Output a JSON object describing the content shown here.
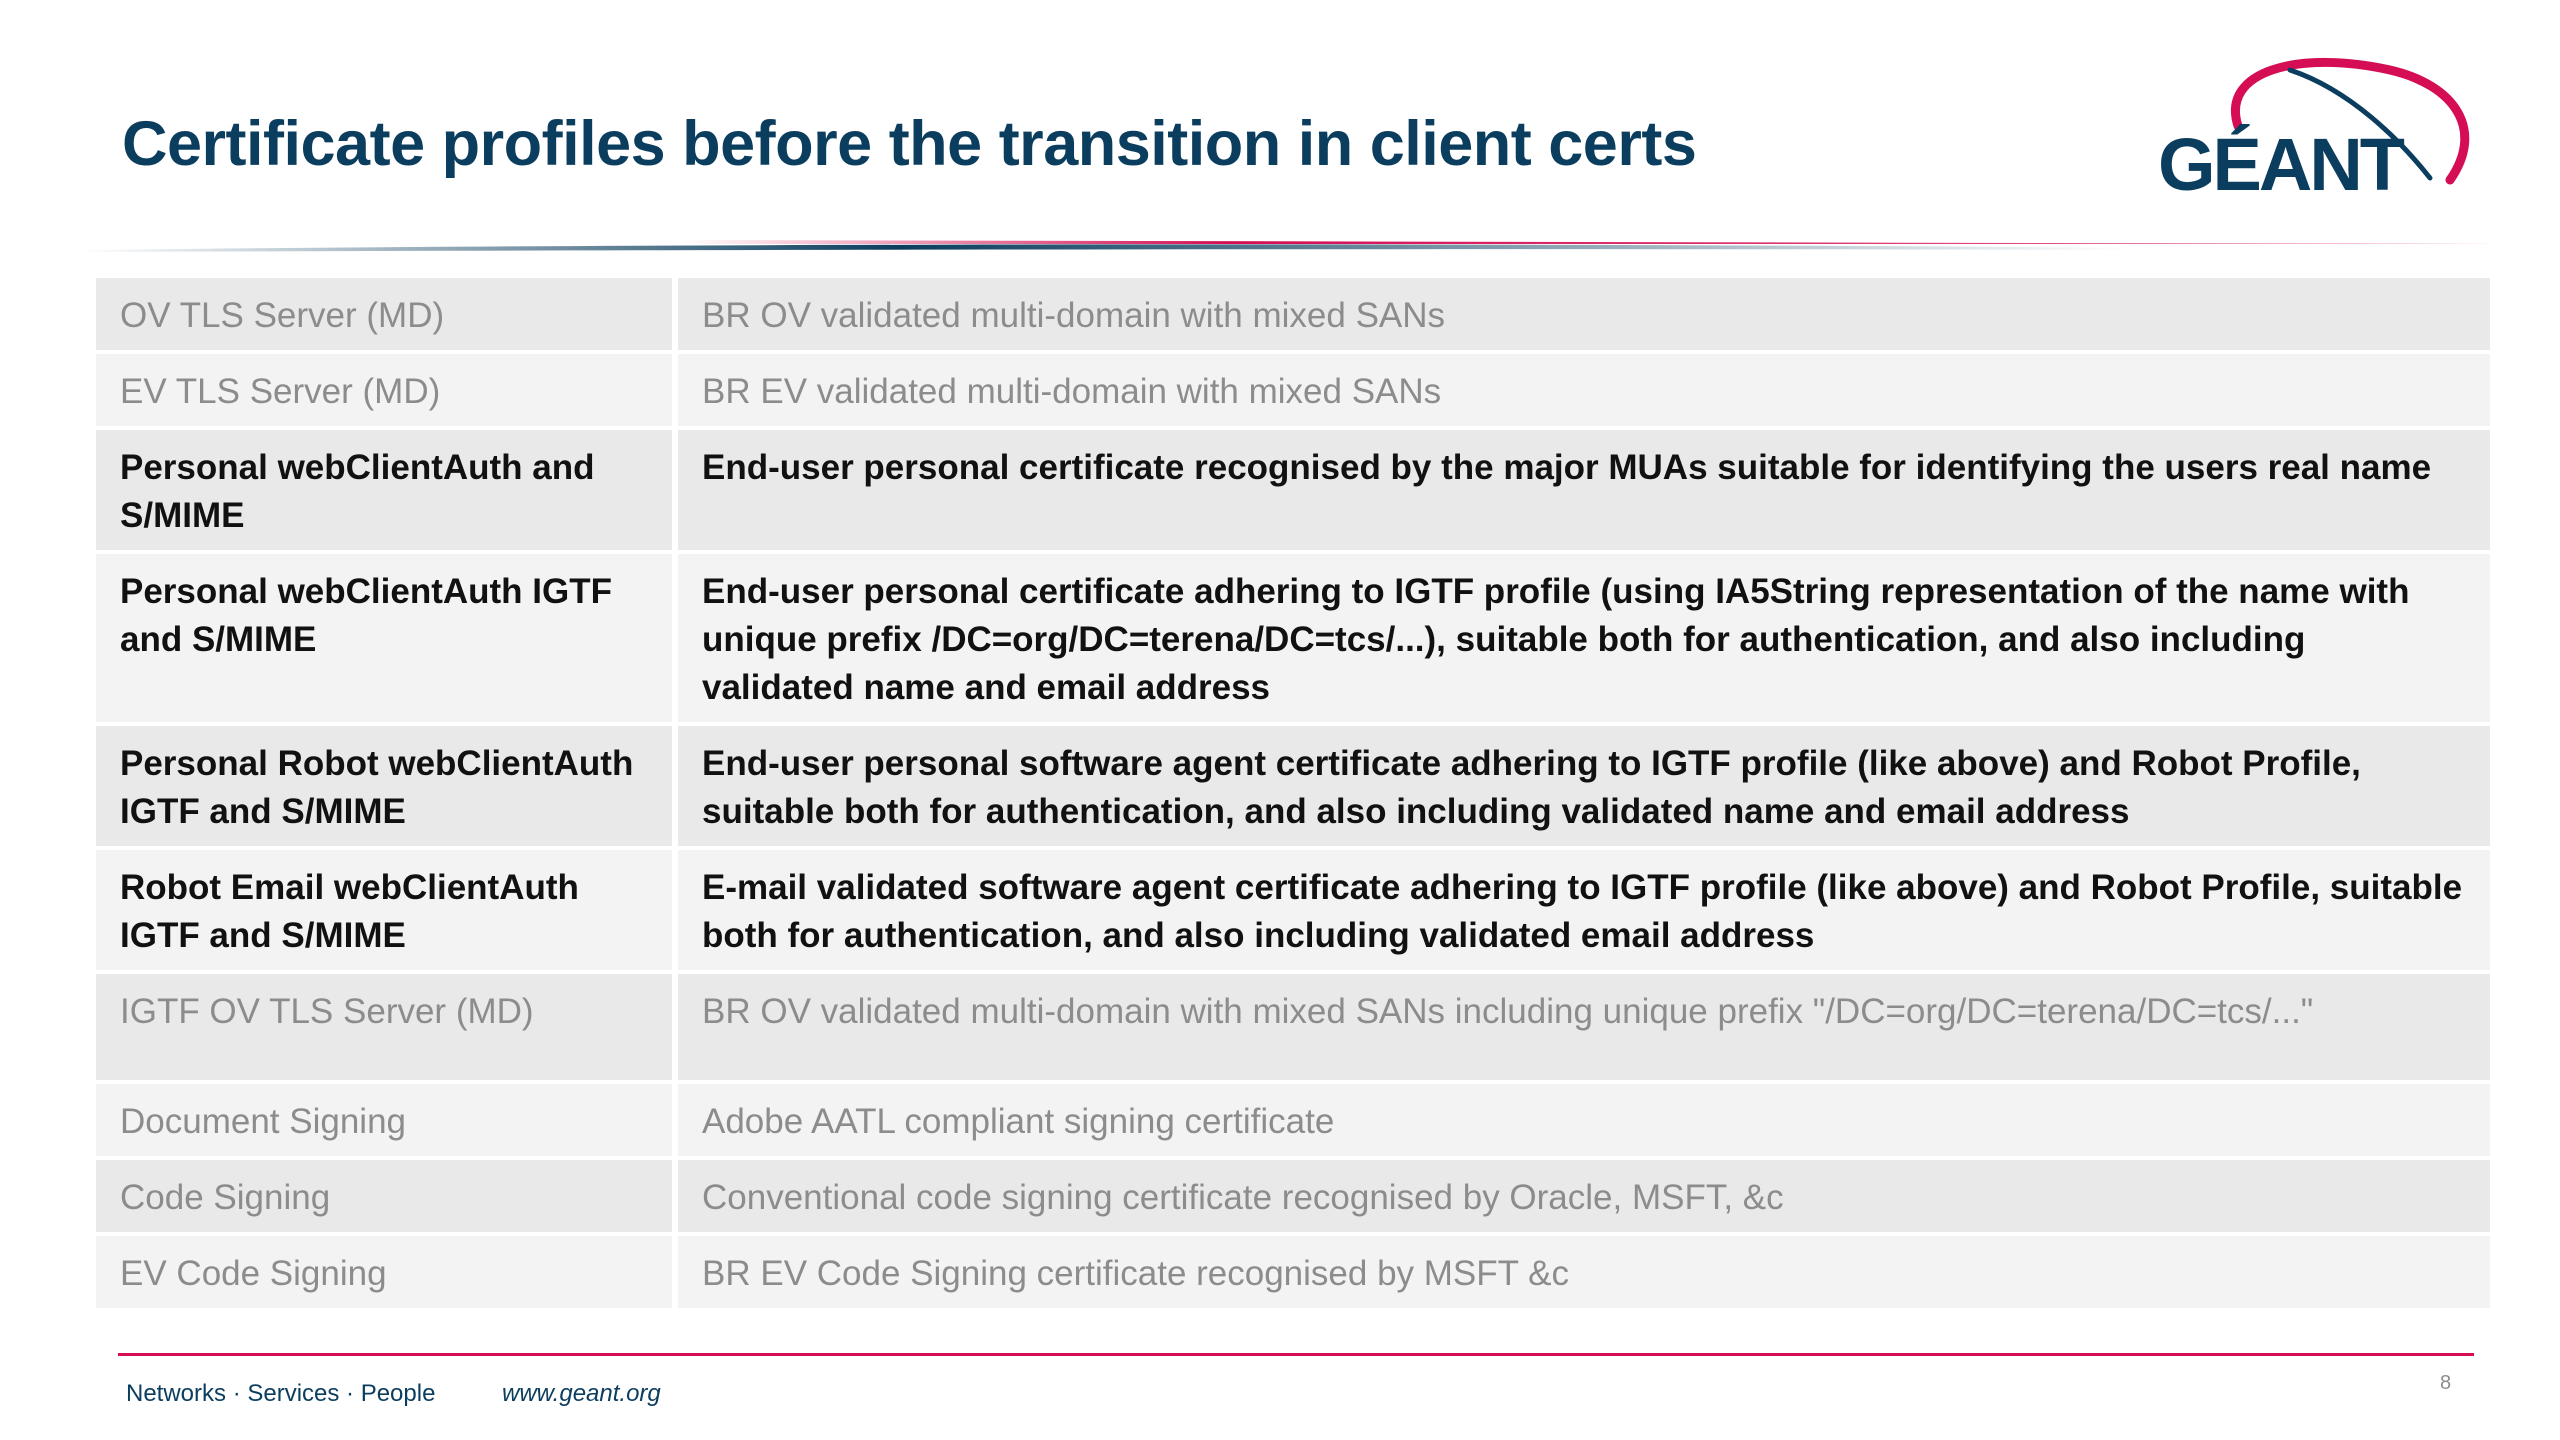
{
  "slide": {
    "title": "Certificate profiles before the transition in client certs",
    "page_number": "8"
  },
  "logo": {
    "text": "GÉANT",
    "colors": {
      "arc": "#d40d54",
      "text": "#0b3d5e"
    }
  },
  "table": {
    "rows": [
      {
        "name": "OV TLS Server (MD)",
        "description": "BR OV validated multi-domain with mixed SANs",
        "emphasis": false
      },
      {
        "name": "EV TLS Server (MD)",
        "description": "BR EV validated multi-domain with mixed SANs",
        "emphasis": false
      },
      {
        "name": "Personal webClientAuth and S/MIME",
        "description": "End-user personal certificate recognised by the major MUAs suitable for identifying the users real name",
        "emphasis": true
      },
      {
        "name": "Personal webClientAuth IGTF and S/MIME",
        "description": "End-user personal certificate adhering to IGTF profile (using IA5String representation of the name with unique prefix /DC=org/DC=terena/DC=tcs/...), suitable both for authentication, and also including validated name and email address",
        "emphasis": true
      },
      {
        "name": "Personal Robot webClientAuth IGTF and S/MIME",
        "description": "End-user personal software agent certificate adhering to IGTF profile (like above) and Robot Profile, suitable both for authentication, and also including validated name and email address",
        "emphasis": true
      },
      {
        "name": "Robot Email webClientAuth IGTF and S/MIME",
        "description": "E-mail validated software agent certificate adhering to IGTF profile (like above) and Robot Profile, suitable both for authentication, and also including validated email address",
        "emphasis": true
      },
      {
        "name": "IGTF OV TLS Server (MD)",
        "description": "BR OV validated multi-domain with mixed SANs including unique prefix \"/DC=org/DC=terena/DC=tcs/...\"",
        "emphasis": false
      },
      {
        "name": "Document Signing",
        "description": "Adobe AATL compliant signing certificate",
        "emphasis": false
      },
      {
        "name": "Code Signing",
        "description": "Conventional code signing certificate recognised by Oracle, MSFT, &c",
        "emphasis": false
      },
      {
        "name": "EV Code Signing",
        "description": "BR EV Code Signing certificate recognised by MSFT &c",
        "emphasis": false
      }
    ]
  },
  "footer": {
    "tagline": "Networks · Services · People",
    "url": "www.geant.org"
  },
  "colors": {
    "title": "#0b3d5e",
    "accent": "#d40d54",
    "muted_text": "#8c8c8c",
    "strong_text": "#111111",
    "row_shade_dark": "#e9e9e9",
    "row_shade_light": "#f3f3f3"
  }
}
